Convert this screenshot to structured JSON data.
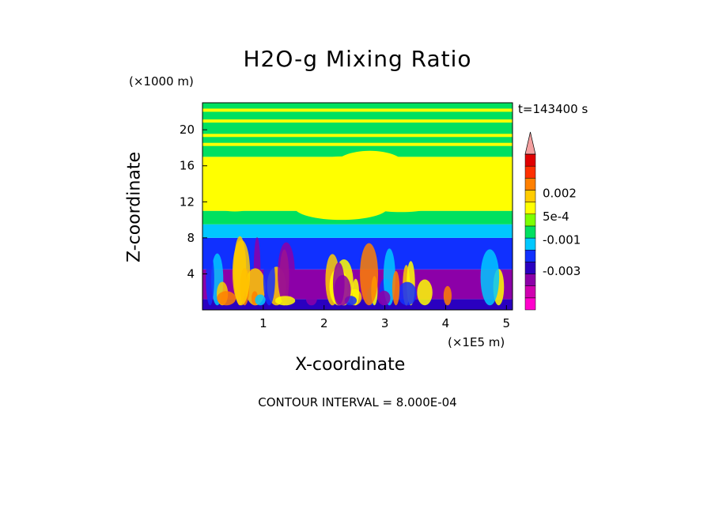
{
  "chart_data": {
    "type": "heatmap",
    "title": "H2O-g Mixing Ratio",
    "xlabel": "X-coordinate",
    "ylabel": "Z-coordinate",
    "x_unit": "(×1E5 m)",
    "z_unit": "(×1000 m)",
    "timestamp": "t=143400 s",
    "contour_note": "CONTOUR INTERVAL = 8.000E-04",
    "xlim": [
      0,
      5.1
    ],
    "ylim": [
      0,
      23
    ],
    "x_ticks": [
      1,
      2,
      3,
      4,
      5
    ],
    "y_ticks": [
      4,
      8,
      12,
      16,
      20
    ],
    "colorbar": {
      "colors": [
        "#ff00cc",
        "#d000b0",
        "#8c00a8",
        "#2a00c0",
        "#1030ff",
        "#00c8ff",
        "#00e060",
        "#7cff00",
        "#ffff00",
        "#ffcc00",
        "#ff8000",
        "#ff3000",
        "#e00000",
        "#f4a0a0"
      ],
      "labels": [
        {
          "text": "-0.003",
          "value": -0.003
        },
        {
          "text": "-0.001",
          "value": -0.001
        },
        {
          "text": "5e-4",
          "value": 0.0005
        },
        {
          "text": "0.002",
          "value": 0.002
        }
      ]
    },
    "layers": [
      {
        "name": "band-0",
        "z_top": 1.2,
        "dominant": "#2a00c0"
      },
      {
        "name": "band-1",
        "z_top": 4.5,
        "dominant": "#8c00a8"
      },
      {
        "name": "band-2",
        "z_top": 8.0,
        "dominant": "#1030ff"
      },
      {
        "name": "band-3",
        "z_top": 9.5,
        "dominant": "#00c8ff"
      },
      {
        "name": "band-4",
        "z_top": 11.0,
        "dominant": "#00e060"
      },
      {
        "name": "band-5",
        "z_top": 17.0,
        "dominant": "#ffff00"
      },
      {
        "name": "band-6",
        "z_top": 23.0,
        "dominant": "#00e060"
      }
    ],
    "grid": false,
    "legend": "right"
  }
}
